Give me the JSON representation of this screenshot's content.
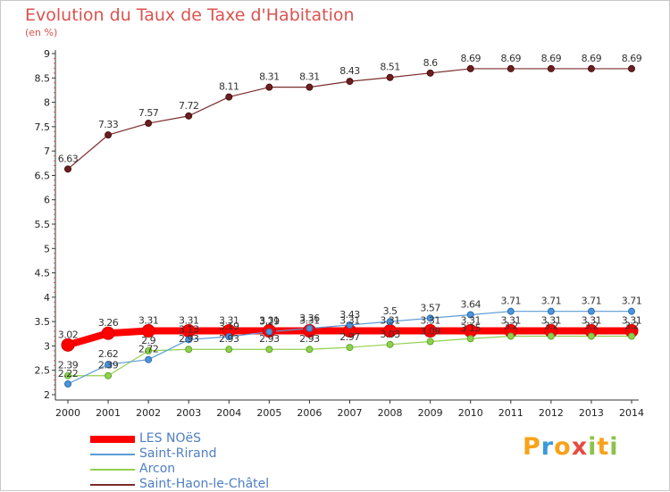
{
  "chart_data": {
    "type": "line",
    "title": "Evolution du Taux de Taxe d'Habitation",
    "subtitle": "(en %)",
    "xlabel": "",
    "ylabel": "",
    "x": [
      "2000",
      "2001",
      "2002",
      "2003",
      "2004",
      "2005",
      "2006",
      "2007",
      "2008",
      "2009",
      "2010",
      "2011",
      "2012",
      "2013",
      "2014"
    ],
    "ylim": [
      2,
      9
    ],
    "yticks": [
      "2",
      "2.5",
      "3",
      "3.5",
      "4",
      "4.5",
      "5",
      "5.5",
      "6",
      "6.5",
      "7",
      "7.5",
      "8",
      "8.5",
      "9"
    ],
    "grid": false,
    "legend_position": "bottom-left",
    "series": [
      {
        "name": "LES NOëS",
        "color": "#ff0000",
        "values": [
          3.02,
          3.26,
          3.31,
          3.31,
          3.31,
          3.31,
          3.31,
          3.31,
          3.31,
          3.31,
          3.31,
          3.31,
          3.31,
          3.31,
          3.31
        ],
        "labels": [
          "3.02",
          "3.26",
          "3.31",
          "3.31",
          "3.31",
          "3.31",
          "3.31",
          "3.31",
          "3.31",
          "3.31",
          "3.31",
          "3.31",
          "3.31",
          "3.31",
          "3.31"
        ]
      },
      {
        "name": "Saint-Rirand",
        "color": "#5b9bd5",
        "values": [
          2.22,
          2.62,
          2.72,
          3.13,
          3.19,
          3.29,
          3.36,
          3.43,
          3.5,
          3.57,
          3.64,
          3.71,
          3.71,
          3.71,
          3.71
        ],
        "labels": [
          "2.22",
          "2.62",
          "2.72",
          "3.13",
          "3.19",
          "3.29",
          "3.36",
          "3.43",
          "3.5",
          "3.57",
          "3.64",
          "3.71",
          "3.71",
          "3.71",
          "3.71"
        ]
      },
      {
        "name": "Arcon",
        "color": "#92d050",
        "values": [
          2.39,
          2.39,
          2.9,
          2.93,
          2.93,
          2.93,
          2.93,
          2.97,
          3.03,
          3.09,
          3.15,
          3.2,
          3.2,
          3.2,
          3.2
        ],
        "labels": [
          "2.39",
          "2.39",
          "2.9",
          "2.93",
          "2.93",
          "2.93",
          "2.93",
          "2.97",
          "3.03",
          "3.09",
          "3.15",
          "3.2",
          "3.2",
          "3.2",
          "3.2"
        ]
      },
      {
        "name": "Saint-Haon-le-Châtel",
        "color": "#7b2c2c",
        "values": [
          6.63,
          7.33,
          7.57,
          7.72,
          8.11,
          8.31,
          8.31,
          8.43,
          8.51,
          8.6,
          8.69,
          8.69,
          8.69,
          8.69,
          8.69
        ],
        "labels": [
          "6.63",
          "7.33",
          "7.57",
          "7.72",
          "8.11",
          "8.31",
          "8.31",
          "8.43",
          "8.51",
          "8.6",
          "8.69",
          "8.69",
          "8.69",
          "8.69",
          "8.69"
        ]
      }
    ]
  },
  "branding": {
    "letters": [
      "P",
      "r",
      "o",
      "x",
      "i",
      "t",
      "i"
    ],
    "colors": [
      "#f7a21b",
      "#3a9ad9",
      "#f7a21b",
      "#e74c3c",
      "#8bc34a",
      "#f7a21b",
      "#8bc34a"
    ]
  }
}
